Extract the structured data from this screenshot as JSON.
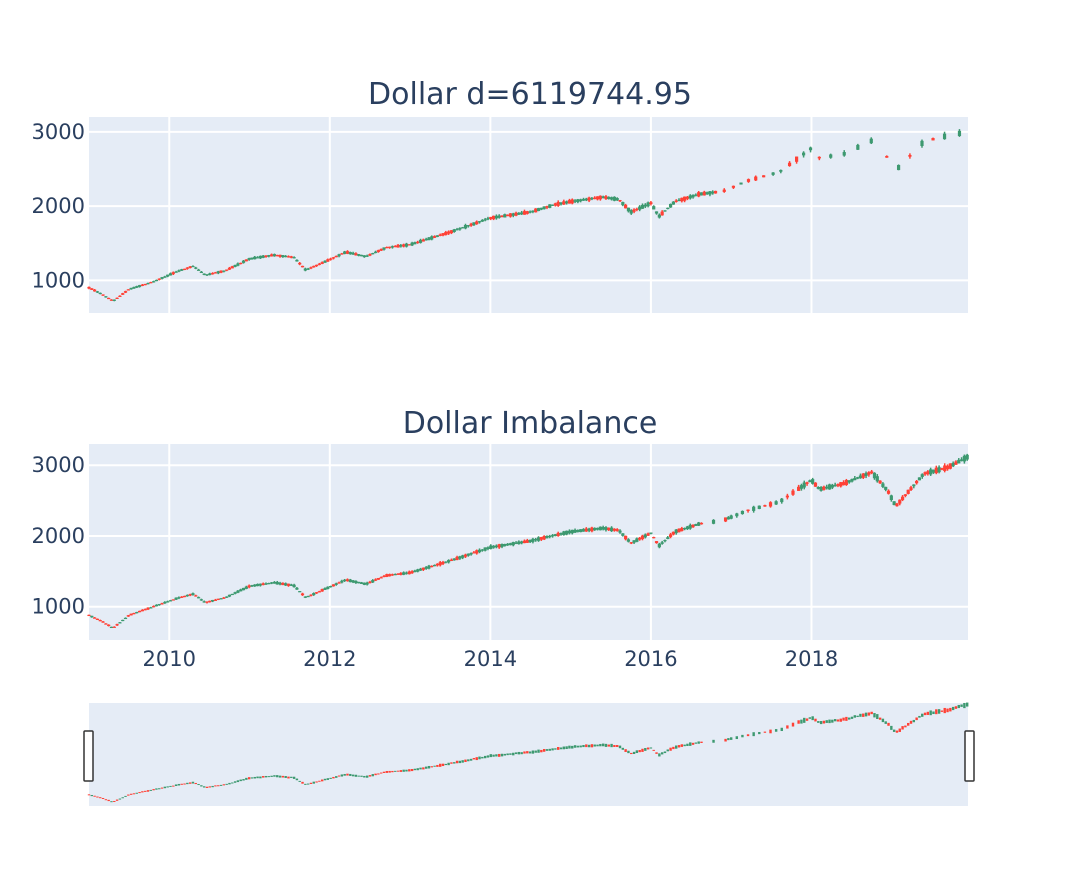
{
  "chart_data": [
    {
      "type": "candlestick",
      "title": "Dollar d=6119744.95",
      "xlabel": "",
      "ylabel": "",
      "xlim": [
        2009.0,
        2019.95
      ],
      "ylim": [
        560,
        3200
      ],
      "yticks": [
        1000,
        2000,
        3000
      ],
      "xticks": [
        2010,
        2012,
        2014,
        2016,
        2018
      ],
      "xtick_labels_visible": false,
      "grid": true,
      "increasing_color": "#3d9970",
      "decreasing_color": "#ff4136",
      "price_path": {
        "x": [
          2009.0,
          2009.15,
          2009.3,
          2009.5,
          2009.8,
          2010.1,
          2010.3,
          2010.45,
          2010.7,
          2011.0,
          2011.3,
          2011.55,
          2011.7,
          2011.9,
          2012.2,
          2012.45,
          2012.7,
          2013.0,
          2013.5,
          2014.0,
          2014.5,
          2014.8,
          2015.0,
          2015.4,
          2015.6,
          2015.75,
          2016.0,
          2016.1,
          2016.3,
          2016.6,
          2016.9,
          2017.2,
          2017.6,
          2018.0,
          2018.1,
          2018.4,
          2018.75,
          2018.95,
          2019.05,
          2019.4,
          2019.7,
          2019.95
        ],
        "y": [
          900,
          820,
          720,
          880,
          980,
          1120,
          1190,
          1070,
          1130,
          1290,
          1340,
          1310,
          1140,
          1230,
          1380,
          1320,
          1440,
          1480,
          1650,
          1840,
          1920,
          2020,
          2060,
          2120,
          2090,
          1920,
          2040,
          1860,
          2060,
          2160,
          2200,
          2340,
          2460,
          2780,
          2650,
          2700,
          2880,
          2650,
          2480,
          2870,
          2950,
          3000
        ]
      },
      "sampling": "sparse-after-2016.8",
      "seed": 7
    },
    {
      "type": "candlestick",
      "title": "Dollar Imbalance",
      "xlabel": "",
      "ylabel": "",
      "xlim": [
        2009.0,
        2019.95
      ],
      "ylim": [
        530,
        3300
      ],
      "yticks": [
        1000,
        2000,
        3000
      ],
      "xticks": [
        2010,
        2012,
        2014,
        2016,
        2018
      ],
      "xtick_labels": [
        "2010",
        "2012",
        "2014",
        "2016",
        "2018"
      ],
      "xtick_labels_visible": true,
      "grid": true,
      "increasing_color": "#3d9970",
      "decreasing_color": "#ff4136",
      "price_path": {
        "x": [
          2009.0,
          2009.15,
          2009.3,
          2009.5,
          2009.8,
          2010.1,
          2010.3,
          2010.45,
          2010.7,
          2011.0,
          2011.3,
          2011.55,
          2011.7,
          2011.9,
          2012.2,
          2012.45,
          2012.7,
          2013.0,
          2013.5,
          2014.0,
          2014.5,
          2014.8,
          2015.0,
          2015.4,
          2015.6,
          2015.75,
          2016.0,
          2016.1,
          2016.3,
          2016.6,
          2016.9,
          2017.2,
          2017.6,
          2018.0,
          2018.1,
          2018.4,
          2018.75,
          2018.95,
          2019.05,
          2019.4,
          2019.7,
          2019.95
        ],
        "y": [
          880,
          800,
          700,
          880,
          1000,
          1120,
          1180,
          1060,
          1130,
          1290,
          1340,
          1300,
          1130,
          1230,
          1380,
          1320,
          1440,
          1480,
          1650,
          1840,
          1930,
          2010,
          2060,
          2110,
          2080,
          1900,
          2040,
          1860,
          2060,
          2170,
          2220,
          2360,
          2480,
          2790,
          2660,
          2740,
          2900,
          2640,
          2420,
          2880,
          2970,
          3120
        ]
      },
      "sampling": "dense-with-gap-2016.75",
      "seed": 11
    }
  ],
  "rangeslider": {
    "type": "range-slider",
    "xlim": [
      2009.0,
      2019.95
    ],
    "selected_range": [
      2009.0,
      2019.95
    ]
  }
}
